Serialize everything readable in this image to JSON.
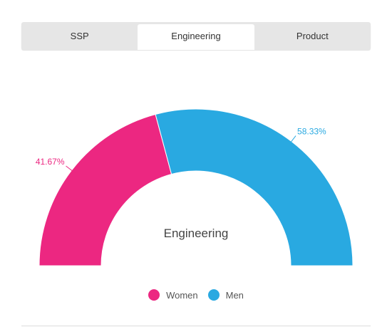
{
  "tabs": [
    {
      "label": "SSP",
      "active": false
    },
    {
      "label": "Engineering",
      "active": true
    },
    {
      "label": "Product",
      "active": false
    }
  ],
  "chart_data": {
    "type": "pie",
    "variant": "semi-donut",
    "center_label": "Engineering",
    "series": [
      {
        "name": "Women",
        "value": 41.67,
        "label": "41.67%",
        "color": "#ec2781"
      },
      {
        "name": "Men",
        "value": 58.33,
        "label": "58.33%",
        "color": "#29a9e1"
      }
    ],
    "legend_position": "bottom-center"
  },
  "legend": [
    {
      "label": "Women",
      "color": "#ec2781"
    },
    {
      "label": "Men",
      "color": "#29a9e1"
    }
  ]
}
